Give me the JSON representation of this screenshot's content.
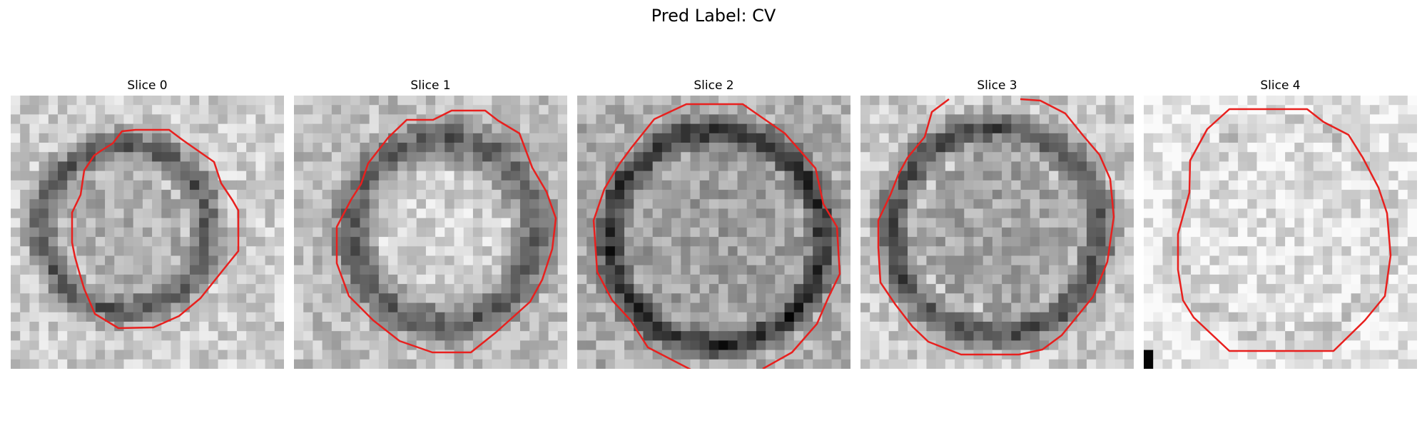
{
  "figure": {
    "title": "Pred Label: CV"
  },
  "panels": [
    {
      "title": "Slice 0",
      "seed": 11,
      "contour_color": "#e8201e"
    },
    {
      "title": "Slice 1",
      "seed": 23,
      "contour_color": "#e8201e"
    },
    {
      "title": "Slice 2",
      "seed": 37,
      "contour_color": "#e8201e"
    },
    {
      "title": "Slice 3",
      "seed": 51,
      "contour_color": "#e8201e"
    },
    {
      "title": "Slice 4",
      "seed": 67,
      "contour_color": "#e8201e"
    }
  ]
}
